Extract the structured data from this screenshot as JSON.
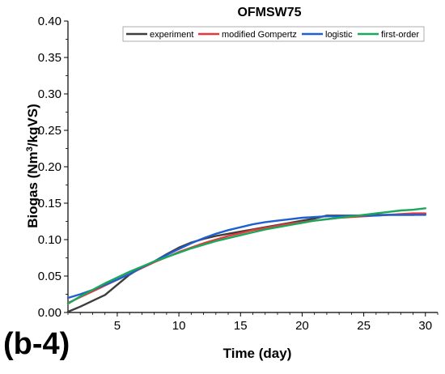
{
  "panel_label": "(b-4)",
  "chart_data": {
    "type": "line",
    "title": "OFMSW75",
    "xlabel": "Time (day)",
    "ylabel_main": "Biogas (Nm",
    "ylabel_sup": "3",
    "ylabel_tail": "/kgVS)",
    "xlim": [
      1,
      31
    ],
    "ylim": [
      0,
      0.4
    ],
    "xticks": [
      5,
      10,
      15,
      20,
      25,
      30
    ],
    "xtick_labels": [
      "5",
      "10",
      "15",
      "20",
      "25",
      "30"
    ],
    "yticks": [
      0,
      0.05,
      0.1,
      0.15,
      0.2,
      0.25,
      0.3,
      0.35,
      0.4
    ],
    "ytick_labels": [
      "0.00",
      "0.05",
      "0.10",
      "0.15",
      "0.20",
      "0.25",
      "0.30",
      "0.35",
      "0.40"
    ],
    "grid": false,
    "legend_position": "top-right",
    "series": [
      {
        "name": "experiment",
        "color": "#3d3d3d",
        "x": [
          1,
          2,
          3,
          4,
          5,
          6,
          7,
          8,
          9,
          10,
          11,
          12,
          13,
          14,
          15,
          16,
          17,
          18,
          19,
          20,
          21,
          22,
          23,
          24,
          25,
          26,
          27,
          28,
          29,
          30
        ],
        "y": [
          0.001,
          0.008,
          0.016,
          0.024,
          0.038,
          0.052,
          0.062,
          0.07,
          0.08,
          0.089,
          0.096,
          0.101,
          0.105,
          0.108,
          0.111,
          0.114,
          0.117,
          0.12,
          0.123,
          0.126,
          0.129,
          0.133,
          0.133,
          0.133,
          0.133,
          0.134,
          0.134,
          0.134,
          0.134,
          0.135
        ]
      },
      {
        "name": "modified Gompertz",
        "color": "#e8363a",
        "x": [
          1,
          2,
          3,
          4,
          5,
          6,
          7,
          8,
          9,
          10,
          11,
          12,
          13,
          14,
          15,
          16,
          17,
          18,
          19,
          20,
          21,
          22,
          23,
          24,
          25,
          26,
          27,
          28,
          29,
          30
        ],
        "y": [
          0.013,
          0.021,
          0.029,
          0.037,
          0.045,
          0.053,
          0.061,
          0.069,
          0.076,
          0.083,
          0.089,
          0.095,
          0.1,
          0.105,
          0.109,
          0.113,
          0.116,
          0.119,
          0.122,
          0.124,
          0.126,
          0.128,
          0.13,
          0.131,
          0.132,
          0.133,
          0.134,
          0.135,
          0.136,
          0.136
        ]
      },
      {
        "name": "logistic",
        "color": "#1f5fd1",
        "x": [
          1,
          2,
          3,
          4,
          5,
          6,
          7,
          8,
          9,
          10,
          11,
          12,
          13,
          14,
          15,
          16,
          17,
          18,
          19,
          20,
          21,
          22,
          23,
          24,
          25,
          26,
          27,
          28,
          29,
          30
        ],
        "y": [
          0.02,
          0.025,
          0.031,
          0.038,
          0.045,
          0.053,
          0.062,
          0.07,
          0.079,
          0.087,
          0.095,
          0.102,
          0.108,
          0.113,
          0.117,
          0.121,
          0.124,
          0.126,
          0.128,
          0.13,
          0.131,
          0.132,
          0.132,
          0.133,
          0.133,
          0.133,
          0.134,
          0.134,
          0.134,
          0.134
        ]
      },
      {
        "name": "first-order",
        "color": "#1aa85a",
        "x": [
          1,
          2,
          3,
          4,
          5,
          6,
          7,
          8,
          9,
          10,
          11,
          12,
          13,
          14,
          15,
          16,
          17,
          18,
          19,
          20,
          21,
          22,
          23,
          24,
          25,
          26,
          27,
          28,
          29,
          30
        ],
        "y": [
          0.012,
          0.022,
          0.031,
          0.04,
          0.048,
          0.056,
          0.063,
          0.07,
          0.076,
          0.082,
          0.088,
          0.093,
          0.098,
          0.102,
          0.106,
          0.11,
          0.114,
          0.117,
          0.12,
          0.123,
          0.126,
          0.128,
          0.13,
          0.132,
          0.134,
          0.136,
          0.138,
          0.14,
          0.141,
          0.143
        ]
      }
    ]
  }
}
